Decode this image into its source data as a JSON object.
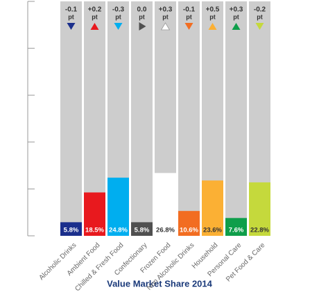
{
  "chart_data": {
    "type": "bar",
    "title": "Value Market Share 2014",
    "categories": [
      "Alcoholic Drinks",
      "Ambient Food",
      "Chilled & Fresh Food",
      "Confectionary",
      "Frozen Food",
      "Non Alcoholic Drinks",
      "Household",
      "Personal Care",
      "Pet Food & Care"
    ],
    "values": [
      5.8,
      18.5,
      24.8,
      5.8,
      26.8,
      10.6,
      23.6,
      7.6,
      22.8
    ],
    "value_labels": [
      "5.8%",
      "18.5%",
      "24.8%",
      "5.8%",
      "26.8%",
      "10.6%",
      "23.6%",
      "7.6%",
      "22.8%"
    ],
    "colors": [
      "#1b2f8c",
      "#e8191e",
      "#00aeef",
      "#505050",
      "#ffffff",
      "#f26d21",
      "#fbb034",
      "#0e9e4a",
      "#c5d93c"
    ],
    "changes": [
      -0.1,
      0.2,
      -0.3,
      0.0,
      0.3,
      -0.1,
      0.5,
      0.3,
      -0.2
    ],
    "change_labels": [
      "-0.1",
      "+0.2",
      "-0.3",
      "0.0",
      "+0.3",
      "-0.1",
      "+0.5",
      "+0.3",
      "-0.2"
    ],
    "change_unit": "pt",
    "background_color": "#cdcdcd",
    "ylim": [
      0,
      100
    ],
    "yticks": [
      0,
      20,
      40,
      60,
      80,
      100
    ]
  }
}
